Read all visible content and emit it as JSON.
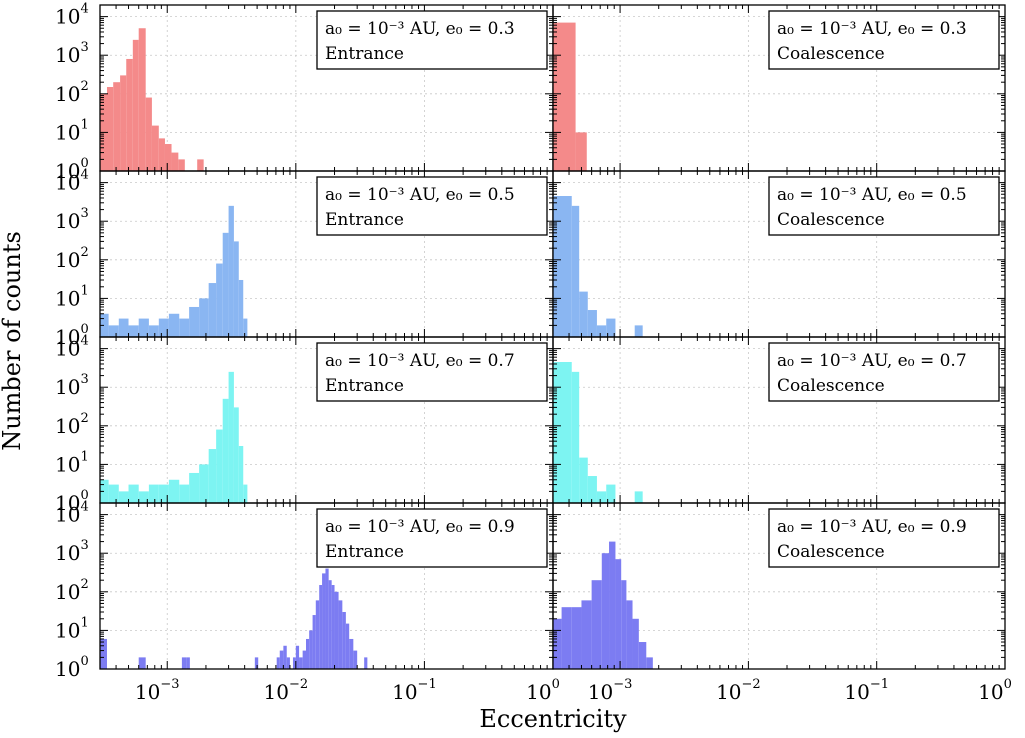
{
  "chart_data": {
    "type": "histogram",
    "xlabel": "Eccentricity",
    "ylabel": "Number of counts",
    "xscale": "log",
    "yscale": "log",
    "ylim": [
      1,
      20000
    ],
    "y_tick_labels": [
      "10",
      "10",
      "10",
      "10",
      "10"
    ],
    "y_tick_exponents": [
      "0",
      "1",
      "2",
      "3",
      "4"
    ],
    "x_tick_labels": [
      "10",
      "10",
      "10",
      "10"
    ],
    "x_tick_exponents": [
      "0",
      "−3",
      "−2",
      "−1"
    ],
    "legend_line1": "a₀ = 10⁻³ AU, e₀ = ",
    "panels": [
      {
        "row": 0,
        "col": 0,
        "e0": "0.3",
        "label": "Entrance",
        "color": "#f48a8a",
        "xlim": [
          0.0003,
          1
        ],
        "bins": [
          [
            0.0003,
            0.00034,
            100
          ],
          [
            0.00034,
            0.00038,
            150
          ],
          [
            0.00038,
            0.00043,
            200
          ],
          [
            0.00043,
            0.00048,
            300
          ],
          [
            0.00048,
            0.00054,
            800
          ],
          [
            0.00054,
            0.0006,
            2500
          ],
          [
            0.0006,
            0.00068,
            5000
          ],
          [
            0.00068,
            0.00076,
            80
          ],
          [
            0.00076,
            0.00086,
            15
          ],
          [
            0.00086,
            0.00096,
            7
          ],
          [
            0.00096,
            0.00108,
            5
          ],
          [
            0.00108,
            0.00122,
            3
          ],
          [
            0.00122,
            0.00137,
            2
          ],
          [
            0.00137,
            0.00154,
            1
          ],
          [
            0.00171,
            0.00192,
            2
          ],
          [
            0.00192,
            0.00215,
            1
          ],
          [
            0.0025,
            0.0028,
            1
          ],
          [
            0.003,
            0.0034,
            1
          ],
          [
            0.0036,
            0.004,
            1
          ]
        ]
      },
      {
        "row": 0,
        "col": 1,
        "e0": "0.3",
        "label": "Coalescence",
        "color": "#f48a8a",
        "xlim": [
          0.0003,
          1
        ],
        "bins": [
          [
            0.0003,
            0.00045,
            7000
          ],
          [
            0.00045,
            0.00055,
            10
          ],
          [
            0.00055,
            0.00075,
            1
          ]
        ]
      },
      {
        "row": 1,
        "col": 0,
        "e0": "0.5",
        "label": "Entrance",
        "color": "#8ab6f2",
        "xlim": [
          0.0003,
          1
        ],
        "bins": [
          [
            0.0003,
            0.00035,
            4
          ],
          [
            0.00035,
            0.00042,
            2
          ],
          [
            0.00042,
            0.0005,
            3
          ],
          [
            0.0005,
            0.0006,
            2
          ],
          [
            0.0006,
            0.00072,
            3
          ],
          [
            0.00072,
            0.00086,
            2
          ],
          [
            0.00086,
            0.00103,
            3
          ],
          [
            0.00103,
            0.00124,
            4
          ],
          [
            0.00124,
            0.00148,
            3
          ],
          [
            0.00148,
            0.00177,
            6
          ],
          [
            0.00177,
            0.0021,
            10
          ],
          [
            0.0021,
            0.0024,
            25
          ],
          [
            0.0024,
            0.0027,
            80
          ],
          [
            0.0027,
            0.003,
            500
          ],
          [
            0.003,
            0.0033,
            2500
          ],
          [
            0.0033,
            0.0036,
            300
          ],
          [
            0.0036,
            0.0039,
            30
          ],
          [
            0.0039,
            0.0042,
            3
          ],
          [
            0.0042,
            0.0046,
            1
          ],
          [
            0.0048,
            0.0052,
            1
          ],
          [
            0.0055,
            0.006,
            1
          ]
        ]
      },
      {
        "row": 1,
        "col": 1,
        "e0": "0.5",
        "label": "Coalescence",
        "color": "#8ab6f2",
        "xlim": [
          0.0003,
          1
        ],
        "bins": [
          [
            0.0003,
            0.00042,
            4500
          ],
          [
            0.00042,
            0.00048,
            2500
          ],
          [
            0.00048,
            0.00056,
            15
          ],
          [
            0.00056,
            0.00066,
            5
          ],
          [
            0.00066,
            0.00078,
            2
          ],
          [
            0.00078,
            0.00092,
            3
          ],
          [
            0.00105,
            0.0012,
            1
          ],
          [
            0.0013,
            0.0015,
            2
          ]
        ]
      },
      {
        "row": 2,
        "col": 0,
        "e0": "0.7",
        "label": "Entrance",
        "color": "#7df4f2",
        "xlim": [
          0.0003,
          1
        ],
        "bins": [
          [
            0.0003,
            0.00035,
            4
          ],
          [
            0.00035,
            0.00042,
            3
          ],
          [
            0.00042,
            0.0005,
            2
          ],
          [
            0.0005,
            0.0006,
            3
          ],
          [
            0.0006,
            0.00072,
            2
          ],
          [
            0.00072,
            0.00086,
            3
          ],
          [
            0.00086,
            0.00103,
            3
          ],
          [
            0.00103,
            0.00124,
            4
          ],
          [
            0.00124,
            0.00148,
            3
          ],
          [
            0.00148,
            0.00177,
            6
          ],
          [
            0.00177,
            0.0021,
            10
          ],
          [
            0.0021,
            0.0024,
            25
          ],
          [
            0.0024,
            0.0027,
            80
          ],
          [
            0.0027,
            0.003,
            500
          ],
          [
            0.003,
            0.0033,
            2500
          ],
          [
            0.0033,
            0.0036,
            300
          ],
          [
            0.0036,
            0.0039,
            30
          ],
          [
            0.0039,
            0.0042,
            3
          ],
          [
            0.0042,
            0.0046,
            1
          ],
          [
            0.0048,
            0.0052,
            1
          ],
          [
            0.0055,
            0.006,
            1
          ]
        ]
      },
      {
        "row": 2,
        "col": 1,
        "e0": "0.7",
        "label": "Coalescence",
        "color": "#7df4f2",
        "xlim": [
          0.0003,
          1
        ],
        "bins": [
          [
            0.0003,
            0.00042,
            4500
          ],
          [
            0.00042,
            0.00048,
            2500
          ],
          [
            0.00048,
            0.00056,
            15
          ],
          [
            0.00056,
            0.00066,
            5
          ],
          [
            0.00066,
            0.00078,
            2
          ],
          [
            0.00078,
            0.00092,
            3
          ],
          [
            0.00105,
            0.0012,
            1
          ],
          [
            0.0013,
            0.0015,
            2
          ]
        ]
      },
      {
        "row": 3,
        "col": 0,
        "e0": "0.9",
        "label": "Entrance",
        "color": "#7c7cf2",
        "xlim": [
          0.0003,
          1
        ],
        "bins": [
          [
            0.0003,
            0.00034,
            6
          ],
          [
            0.0006,
            0.00068,
            2
          ],
          [
            0.0011,
            0.0012,
            1
          ],
          [
            0.0013,
            0.00142,
            2
          ],
          [
            0.00142,
            0.0015,
            2
          ],
          [
            0.0048,
            0.0051,
            2
          ],
          [
            0.0067,
            0.0071,
            1
          ],
          [
            0.0071,
            0.0075,
            2
          ],
          [
            0.0075,
            0.008,
            3
          ],
          [
            0.008,
            0.0085,
            4
          ],
          [
            0.0085,
            0.009,
            2
          ],
          [
            0.0095,
            0.01,
            2
          ],
          [
            0.01,
            0.0106,
            4
          ],
          [
            0.0106,
            0.0113,
            2
          ],
          [
            0.0113,
            0.012,
            3
          ],
          [
            0.012,
            0.0127,
            6
          ],
          [
            0.0127,
            0.0135,
            10
          ],
          [
            0.0135,
            0.0143,
            25
          ],
          [
            0.0143,
            0.0152,
            60
          ],
          [
            0.0152,
            0.016,
            150
          ],
          [
            0.016,
            0.017,
            300
          ],
          [
            0.017,
            0.018,
            400
          ],
          [
            0.018,
            0.019,
            200
          ],
          [
            0.019,
            0.02,
            150
          ],
          [
            0.02,
            0.0215,
            100
          ],
          [
            0.0215,
            0.023,
            60
          ],
          [
            0.023,
            0.0245,
            30
          ],
          [
            0.0245,
            0.026,
            15
          ],
          [
            0.026,
            0.028,
            6
          ],
          [
            0.028,
            0.03,
            3
          ],
          [
            0.03,
            0.032,
            1
          ],
          [
            0.034,
            0.036,
            2
          ]
        ]
      },
      {
        "row": 3,
        "col": 1,
        "e0": "0.9",
        "label": "Coalescence",
        "color": "#7c7cf2",
        "xlim": [
          0.0003,
          1
        ],
        "bins": [
          [
            0.0003,
            0.00035,
            20
          ],
          [
            0.00035,
            0.00042,
            40
          ],
          [
            0.00042,
            0.0005,
            40
          ],
          [
            0.0005,
            0.0006,
            60
          ],
          [
            0.0006,
            0.00072,
            200
          ],
          [
            0.00072,
            0.00082,
            1000
          ],
          [
            0.00082,
            0.00092,
            2000
          ],
          [
            0.00092,
            0.00102,
            700
          ],
          [
            0.00102,
            0.00112,
            200
          ],
          [
            0.00112,
            0.00125,
            60
          ],
          [
            0.00125,
            0.0014,
            20
          ],
          [
            0.0014,
            0.0016,
            5
          ],
          [
            0.0016,
            0.0018,
            2
          ],
          [
            0.0018,
            0.002,
            1
          ]
        ]
      }
    ]
  }
}
